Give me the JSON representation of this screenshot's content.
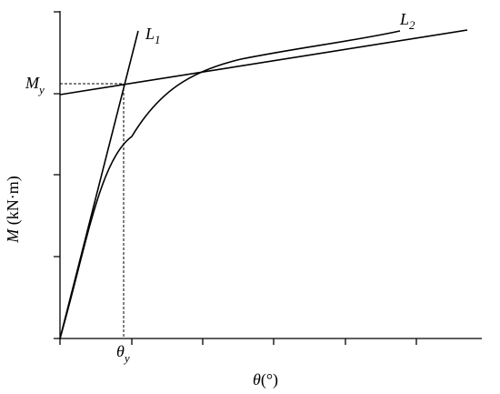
{
  "axes": {
    "y_label": {
      "symbol": "M",
      "unit": "(kN·m)"
    },
    "x_label": {
      "symbol": "θ",
      "unit": "(°)"
    }
  },
  "annotations": {
    "my": {
      "symbol": "M",
      "sub": "y"
    },
    "thetay": {
      "symbol": "θ",
      "sub": "y"
    },
    "l1": {
      "symbol": "L",
      "sub": "1"
    },
    "l2": {
      "symbol": "L",
      "sub": "2"
    }
  }
}
